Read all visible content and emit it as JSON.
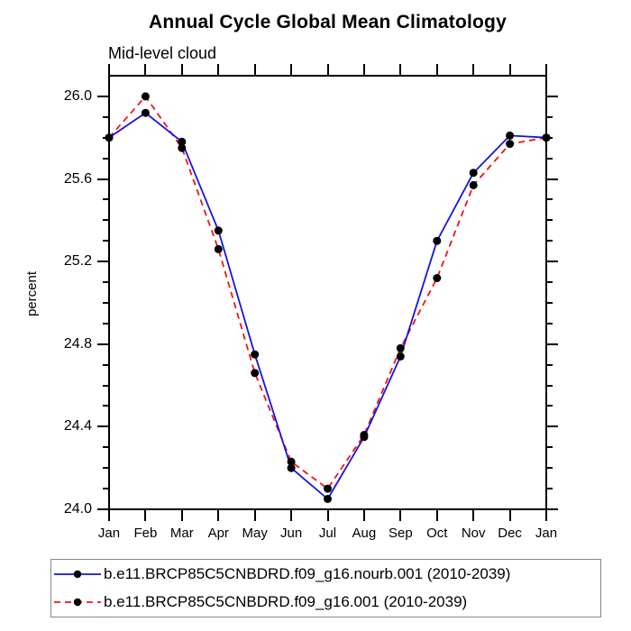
{
  "chart_data": {
    "type": "line",
    "title": "Annual Cycle Global Mean Climatology",
    "subtitle": "Mid-level cloud",
    "ylabel": "percent",
    "xlabel": "",
    "categories": [
      "Jan",
      "Feb",
      "Mar",
      "Apr",
      "May",
      "Jun",
      "Jul",
      "Aug",
      "Sep",
      "Oct",
      "Nov",
      "Dec",
      "Jan"
    ],
    "series": [
      {
        "name": "b.e11.BRCP85C5CNBDRD.f09_g16.nourb.001 (2010-2039)",
        "color": "#1414e6",
        "line_style": "solid",
        "marker": "filled-circle",
        "values": [
          25.8,
          25.92,
          25.78,
          25.35,
          24.75,
          24.2,
          24.05,
          24.35,
          24.74,
          25.3,
          25.63,
          25.81,
          25.8
        ]
      },
      {
        "name": "b.e11.BRCP85C5CNBDRD.f09_g16.001 (2010-2039)",
        "color": "#f01414",
        "line_style": "dashed",
        "marker": "filled-circle",
        "values": [
          25.8,
          26.0,
          25.75,
          25.26,
          24.66,
          24.23,
          24.1,
          24.36,
          24.78,
          25.12,
          25.57,
          25.77,
          25.8
        ]
      }
    ],
    "marker_color": "#000000",
    "yticks_major": [
      24.0,
      24.4,
      24.8,
      25.2,
      25.6,
      26.0
    ],
    "ytick_labels": [
      "24.0",
      "24.4",
      "24.8",
      "25.2",
      "25.6",
      "26.0"
    ],
    "minor_tick_step": 0.1,
    "ylim": [
      24.0,
      26.1
    ],
    "grid": false,
    "legend_position": "bottom"
  }
}
